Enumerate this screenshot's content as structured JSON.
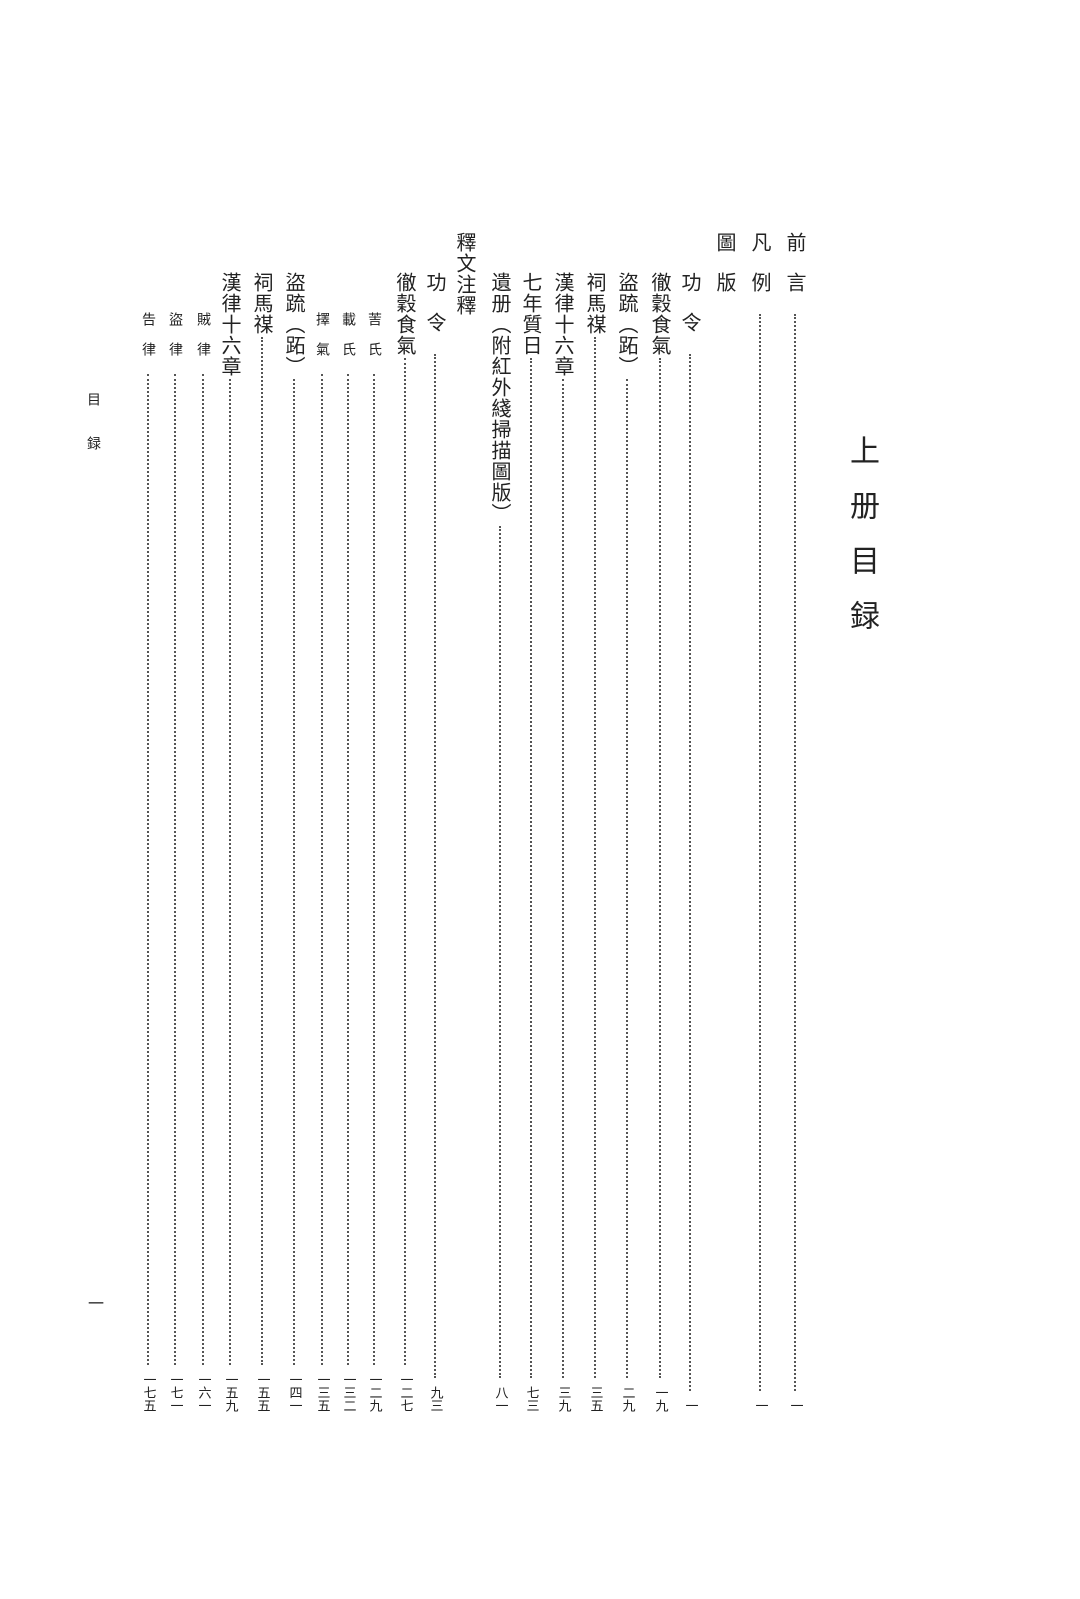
{
  "title": "上册目録",
  "running_head": "目録",
  "page_number": "一",
  "entries": [
    {
      "title": "前言",
      "page": "一",
      "level": 1
    },
    {
      "title": "凡例",
      "page": "一",
      "level": 1
    },
    {
      "title": "圖版",
      "page": "",
      "level": 1
    },
    {
      "title": "功令",
      "page": "一",
      "level": 2
    },
    {
      "title": "徹穀食氣",
      "page": "一九",
      "level": 2
    },
    {
      "title": "盜䟽（跖）",
      "page": "二九",
      "level": 2
    },
    {
      "title": "祠馬禖",
      "page": "三五",
      "level": 2
    },
    {
      "title": "漢律十六章",
      "page": "三九",
      "level": 2
    },
    {
      "title": "七年質日",
      "page": "七三",
      "level": 2
    },
    {
      "title": "遺册（附紅外綫掃描圖版）",
      "page": "八一",
      "level": 2
    },
    {
      "title": "釋文注釋",
      "page": "",
      "level": 1
    },
    {
      "title": "功令",
      "page": "九三",
      "level": 2
    },
    {
      "title": "徹穀食氣",
      "page": "一二七",
      "level": 2
    },
    {
      "title": "䓀氏",
      "page": "一二九",
      "level": 3
    },
    {
      "title": "載氏",
      "page": "一三二",
      "level": 3
    },
    {
      "title": "擇氣",
      "page": "一三五",
      "level": 3
    },
    {
      "title": "盜䟽（跖）",
      "page": "一四一",
      "level": 2
    },
    {
      "title": "祠馬禖",
      "page": "一五五",
      "level": 2
    },
    {
      "title": "漢律十六章",
      "page": "一五九",
      "level": 2
    },
    {
      "title": "賊律",
      "page": "一六一",
      "level": 3
    },
    {
      "title": "盜律",
      "page": "一七一",
      "level": 3
    },
    {
      "title": "告律",
      "page": "一七五",
      "level": 3
    }
  ]
}
